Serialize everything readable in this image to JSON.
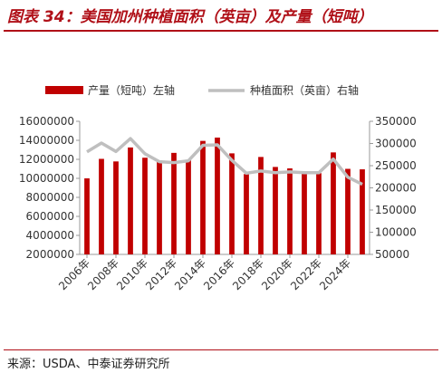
{
  "header": {
    "title": "图表 34：美国加州种植面积（英亩）及产量（短吨）"
  },
  "footer": {
    "source": "来源：USDA、中泰证券研究所"
  },
  "colors": {
    "accent": "#b01018",
    "bar": "#c00000",
    "line": "#bfbfbf"
  },
  "chart_data": {
    "type": "bar",
    "x": [
      "2006年",
      "2007年",
      "2008年",
      "2009年",
      "2010年",
      "2011年",
      "2012年",
      "2013年",
      "2014年",
      "2015年",
      "2016年",
      "2017年",
      "2018年",
      "2019年",
      "2020年",
      "2021年",
      "2022年",
      "2023年",
      "2024年",
      "2025年"
    ],
    "x_tick_labels": [
      "2006年",
      "2008年",
      "2010年",
      "2012年",
      "2014年",
      "2016年",
      "2018年",
      "2020年",
      "2022年",
      "2024年"
    ],
    "series": [
      {
        "name": "产量（短吨）左轴",
        "type": "bar",
        "axis": "left",
        "values": [
          10000000,
          12050000,
          11780000,
          13250000,
          12170000,
          11900000,
          12680000,
          11940000,
          13940000,
          14290000,
          12630000,
          10450000,
          12250000,
          11200000,
          11050000,
          10650000,
          10550000,
          12730000,
          11000000,
          10950000
        ]
      },
      {
        "name": "种植面积（英亩）右轴",
        "type": "line",
        "axis": "right",
        "values": [
          281000,
          301000,
          282000,
          311000,
          277000,
          259000,
          257000,
          261000,
          296000,
          297000,
          262000,
          233000,
          238000,
          234000,
          236000,
          234000,
          234000,
          265000,
          224000,
          208000
        ]
      }
    ],
    "yleft": {
      "lim": [
        2000000,
        16000000
      ],
      "ticks": [
        2000000,
        4000000,
        6000000,
        8000000,
        10000000,
        12000000,
        14000000,
        16000000
      ]
    },
    "yright": {
      "lim": [
        50000,
        350000
      ],
      "ticks": [
        50000,
        100000,
        150000,
        200000,
        250000,
        300000,
        350000
      ]
    },
    "legend": "top"
  }
}
